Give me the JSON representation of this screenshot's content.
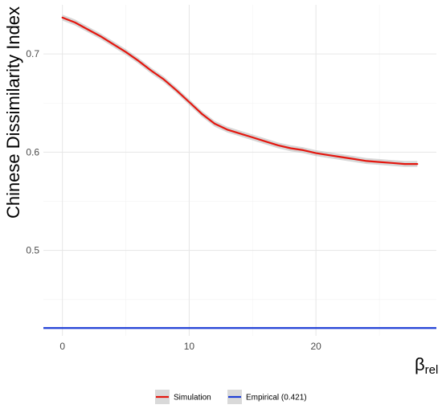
{
  "chart_data": {
    "type": "line",
    "title": "",
    "xlabel": "β",
    "xlabel_subscript": "rel",
    "ylabel": "Chinese Dissimilarity Index",
    "xlim": [
      -1.5,
      29.5
    ],
    "ylim": [
      0.413,
      0.75
    ],
    "xticks": [
      0,
      10,
      20
    ],
    "xtick_labels": [
      "0",
      "10",
      "20"
    ],
    "yticks": [
      0.5,
      0.6,
      0.7
    ],
    "ytick_labels": [
      "0.5",
      "0.6",
      "0.7"
    ],
    "x_minor": [
      5,
      15,
      25
    ],
    "y_minor": [
      0.45,
      0.55,
      0.65
    ],
    "grid": true,
    "legend_position": "bottom",
    "series": [
      {
        "name": "Simulation",
        "color": "#e4170f",
        "band_color": "#bdbdbd",
        "x": [
          0,
          1,
          2,
          3,
          4,
          5,
          6,
          7,
          8,
          9,
          10,
          11,
          12,
          13,
          14,
          15,
          16,
          17,
          18,
          19,
          20,
          21,
          22,
          23,
          24,
          25,
          26,
          27,
          28
        ],
        "y": [
          0.737,
          0.732,
          0.725,
          0.718,
          0.71,
          0.702,
          0.693,
          0.683,
          0.674,
          0.663,
          0.651,
          0.639,
          0.629,
          0.623,
          0.619,
          0.615,
          0.611,
          0.607,
          0.604,
          0.602,
          0.599,
          0.597,
          0.595,
          0.593,
          0.591,
          0.59,
          0.589,
          0.588,
          0.588
        ],
        "band_halfwidth": 0.003
      },
      {
        "name": "Empirical (0.421)",
        "color": "#1f3fd6",
        "hline": 0.421
      }
    ]
  }
}
